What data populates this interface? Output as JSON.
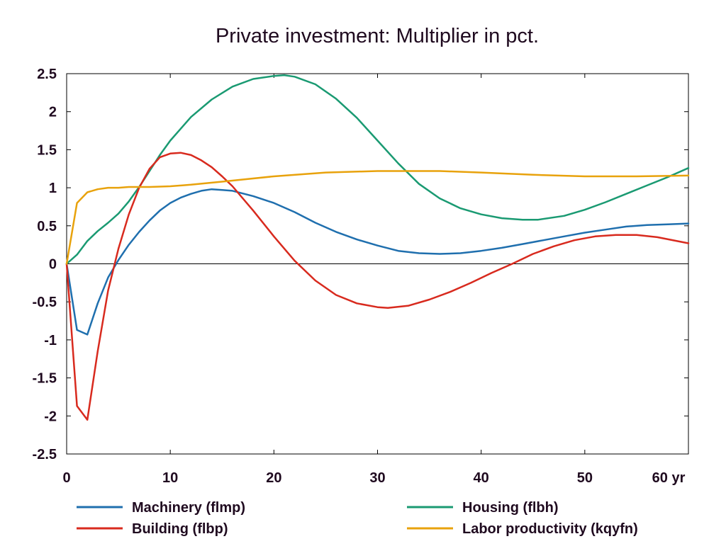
{
  "chart_data": {
    "type": "line",
    "title": "Private investment: Multiplier in pct.",
    "xlabel": "",
    "ylabel": "",
    "x_unit": "yr",
    "xlim": [
      0,
      60
    ],
    "ylim": [
      -2.5,
      2.5
    ],
    "xticks": [
      0,
      10,
      20,
      30,
      40,
      50,
      60
    ],
    "xtick_labels": [
      "0",
      "10",
      "20",
      "30",
      "40",
      "50",
      "60 yr"
    ],
    "yticks": [
      2.5,
      2,
      1.5,
      1,
      0.5,
      0,
      -0.5,
      -1,
      -1.5,
      -2,
      -2.5
    ],
    "ytick_labels": [
      "2.5",
      "2",
      "1.5",
      "1",
      "0.5",
      "0",
      "-0.5",
      "-1",
      "-1.5",
      "-2",
      "-2.5"
    ],
    "grid": false,
    "legend_position": "bottom",
    "series": [
      {
        "name": "Machinery (flmp)",
        "color": "#1f6fae",
        "x": [
          0,
          1,
          2,
          3,
          4,
          5,
          6,
          7,
          8,
          9,
          10,
          11,
          12,
          13,
          14,
          15,
          16,
          18,
          20,
          22,
          24,
          26,
          28,
          30,
          32,
          34,
          36,
          38,
          40,
          42,
          44,
          46,
          48,
          50,
          52,
          54,
          56,
          58,
          60
        ],
        "y": [
          0,
          -0.87,
          -0.93,
          -0.52,
          -0.18,
          0.05,
          0.25,
          0.42,
          0.57,
          0.7,
          0.8,
          0.87,
          0.92,
          0.96,
          0.98,
          0.97,
          0.96,
          0.89,
          0.8,
          0.68,
          0.54,
          0.42,
          0.32,
          0.24,
          0.17,
          0.14,
          0.13,
          0.14,
          0.17,
          0.21,
          0.26,
          0.31,
          0.36,
          0.41,
          0.45,
          0.49,
          0.51,
          0.52,
          0.53
        ]
      },
      {
        "name": "Housing (flbh)",
        "color": "#1a9a72",
        "x": [
          0,
          1,
          2,
          3,
          4,
          5,
          6,
          7,
          8,
          9,
          10,
          12,
          14,
          16,
          18,
          20,
          21,
          22,
          24,
          26,
          28,
          30,
          32,
          34,
          36,
          38,
          40,
          42,
          44,
          45.5,
          48,
          50,
          52,
          54,
          56,
          58,
          60
        ],
        "y": [
          0,
          0.12,
          0.3,
          0.43,
          0.54,
          0.66,
          0.82,
          1.01,
          1.22,
          1.43,
          1.62,
          1.93,
          2.16,
          2.33,
          2.43,
          2.47,
          2.48,
          2.46,
          2.36,
          2.17,
          1.92,
          1.62,
          1.32,
          1.05,
          0.86,
          0.73,
          0.65,
          0.6,
          0.58,
          0.58,
          0.63,
          0.71,
          0.81,
          0.92,
          1.03,
          1.14,
          1.26
        ]
      },
      {
        "name": "Building (flbp)",
        "color": "#d82a1e",
        "x": [
          0,
          1,
          2,
          3,
          4,
          5,
          6,
          7,
          8,
          9,
          10,
          11,
          12,
          13,
          14,
          15,
          16,
          18,
          20,
          22,
          24,
          26,
          28,
          30,
          31,
          33,
          35,
          37,
          39,
          41,
          43,
          45,
          47,
          49,
          51,
          53,
          55,
          57,
          60
        ],
        "y": [
          0,
          -1.87,
          -2.05,
          -1.15,
          -0.35,
          0.2,
          0.65,
          1.0,
          1.25,
          1.4,
          1.45,
          1.46,
          1.43,
          1.36,
          1.27,
          1.15,
          1.02,
          0.7,
          0.36,
          0.04,
          -0.22,
          -0.41,
          -0.52,
          -0.57,
          -0.58,
          -0.55,
          -0.47,
          -0.37,
          -0.25,
          -0.12,
          0.0,
          0.13,
          0.23,
          0.31,
          0.36,
          0.38,
          0.38,
          0.35,
          0.27
        ]
      },
      {
        "name": "Labor productivity (kqyfn)",
        "color": "#e8a20c",
        "x": [
          0,
          1,
          2,
          3,
          4,
          5,
          6,
          8,
          10,
          12,
          15,
          20,
          25,
          30,
          33,
          36,
          40,
          45,
          50,
          55,
          60
        ],
        "y": [
          0,
          0.8,
          0.94,
          0.98,
          1.0,
          1.0,
          1.01,
          1.01,
          1.02,
          1.04,
          1.08,
          1.15,
          1.2,
          1.22,
          1.22,
          1.22,
          1.2,
          1.17,
          1.15,
          1.15,
          1.16
        ]
      }
    ]
  }
}
